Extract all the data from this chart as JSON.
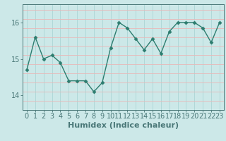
{
  "x": [
    0,
    1,
    2,
    3,
    4,
    5,
    6,
    7,
    8,
    9,
    10,
    11,
    12,
    13,
    14,
    15,
    16,
    17,
    18,
    19,
    20,
    21,
    22,
    23
  ],
  "y": [
    14.7,
    15.6,
    15.0,
    15.1,
    14.9,
    14.4,
    14.4,
    14.4,
    14.1,
    14.35,
    15.3,
    16.0,
    15.85,
    15.55,
    15.25,
    15.55,
    15.15,
    15.75,
    16.0,
    16.0,
    16.0,
    15.85,
    15.45,
    16.0
  ],
  "line_color": "#2d7d6f",
  "marker": "D",
  "marker_size": 2.5,
  "bg_color": "#cce8e8",
  "grid_color_vert": "#b0d8d8",
  "grid_color_horiz": "#e8b8b8",
  "xlabel": "Humidex (Indice chaleur)",
  "xlabel_fontsize": 8,
  "ylim": [
    13.6,
    16.5
  ],
  "yticks": [
    14,
    15,
    16
  ],
  "xlim": [
    -0.5,
    23.5
  ],
  "xticks": [
    0,
    1,
    2,
    3,
    4,
    5,
    6,
    7,
    8,
    9,
    10,
    11,
    12,
    13,
    14,
    15,
    16,
    17,
    18,
    19,
    20,
    21,
    22,
    23
  ],
  "tick_fontsize": 7,
  "axis_color": "#4a7878"
}
